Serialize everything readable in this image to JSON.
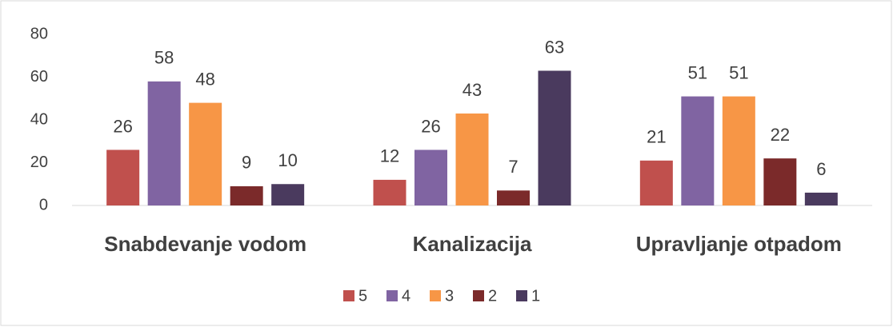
{
  "chart_data": {
    "type": "bar",
    "categories": [
      "Snabdevanje vodom",
      "Kanalizacija",
      "Upravljanje otpadom"
    ],
    "series": [
      {
        "name": "5",
        "color": "#c0504d",
        "values": [
          26,
          12,
          21
        ]
      },
      {
        "name": "4",
        "color": "#8064a2",
        "values": [
          58,
          26,
          51
        ]
      },
      {
        "name": "3",
        "color": "#f79646",
        "values": [
          48,
          43,
          51
        ]
      },
      {
        "name": "2",
        "color": "#7b2a2a",
        "values": [
          9,
          7,
          22
        ]
      },
      {
        "name": "1",
        "color": "#4a3a5e",
        "values": [
          10,
          63,
          6
        ]
      }
    ],
    "ylim": [
      0,
      80
    ],
    "yticks": [
      0,
      20,
      40,
      60,
      80
    ],
    "grid": false,
    "legend": "bottom"
  }
}
